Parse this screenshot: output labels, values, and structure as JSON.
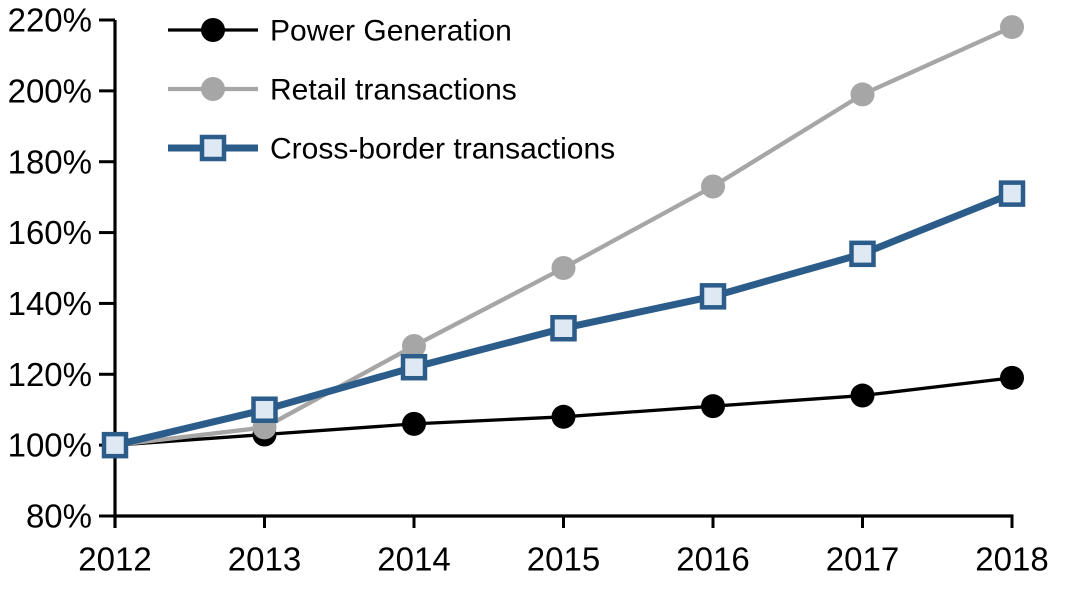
{
  "page": {
    "background": "#FFFFFF"
  },
  "chart_data": {
    "type": "line",
    "title": "",
    "xlabel": "",
    "ylabel": "",
    "x_labels": [
      "2012",
      "2013",
      "2014",
      "2015",
      "2016",
      "2017",
      "2018"
    ],
    "series": [
      {
        "name": "Power Generation",
        "color": "#000000",
        "marker": "circle",
        "marker_fill": "#000000",
        "line_width": 3.3,
        "values": [
          100,
          103,
          106,
          108,
          111,
          114,
          119
        ]
      },
      {
        "name": "Retail transactions",
        "color": "#A6A6A6",
        "marker": "circle",
        "marker_fill": "#A6A6A6",
        "line_width": 4.3,
        "values": [
          100,
          105,
          128,
          150,
          173,
          199,
          218
        ]
      },
      {
        "name": "Cross-border transactions",
        "color": "#2B5C8A",
        "marker": "square",
        "marker_fill": "#DFE9F4",
        "line_width": 7,
        "values": [
          100,
          110,
          122,
          133,
          142,
          154,
          171
        ]
      }
    ],
    "ylim": [
      80,
      220
    ],
    "ytick_step": 20,
    "ytick_labels": [
      "80%",
      "100%",
      "120%",
      "140%",
      "160%",
      "180%",
      "200%",
      "220%"
    ],
    "unit": "%",
    "legend_position": "top-left",
    "grid": false,
    "axis_color": "#000000"
  }
}
